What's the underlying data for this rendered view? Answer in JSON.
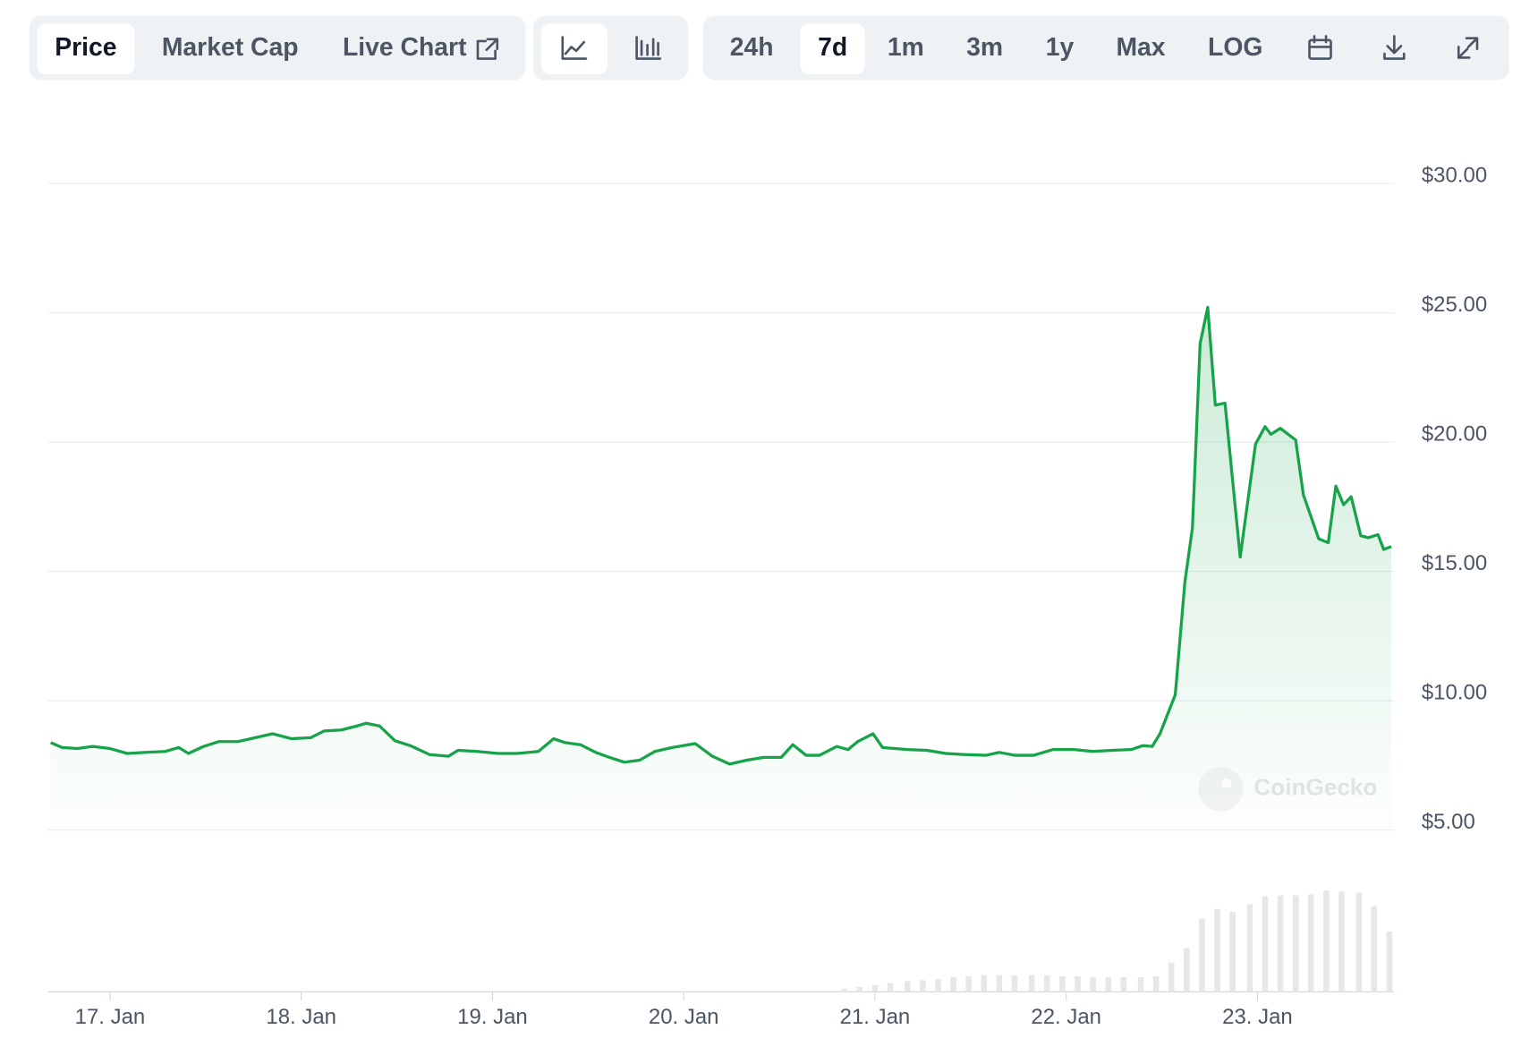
{
  "toolbar": {
    "tabs": [
      "Price",
      "Market Cap",
      "Live Chart"
    ],
    "ranges": [
      "24h",
      "7d",
      "1m",
      "3m",
      "1y",
      "Max",
      "LOG"
    ]
  },
  "watermark": "CoinGecko",
  "chart_data": [
    {
      "type": "line",
      "color": "#16a34a",
      "grid": true,
      "x": [
        16.69,
        16.75,
        16.83,
        16.91,
        17.0,
        17.09,
        17.19,
        17.29,
        17.36,
        17.41,
        17.49,
        17.57,
        17.67,
        17.76,
        17.85,
        17.95,
        18.05,
        18.12,
        18.21,
        18.29,
        18.34,
        18.41,
        18.49,
        18.57,
        18.67,
        18.77,
        18.82,
        18.92,
        19.03,
        19.13,
        19.24,
        19.32,
        19.38,
        19.46,
        19.54,
        19.61,
        19.69,
        19.77,
        19.85,
        19.94,
        20.06,
        20.15,
        20.24,
        20.33,
        20.42,
        20.51,
        20.57,
        20.64,
        20.71,
        20.8,
        20.86,
        20.91,
        20.99,
        21.04,
        21.17,
        21.27,
        21.37,
        21.47,
        21.58,
        21.65,
        21.73,
        21.83,
        21.93,
        22.04,
        22.14,
        22.24,
        22.34,
        22.4,
        22.45,
        22.49,
        22.57,
        22.62,
        22.66,
        22.7,
        22.74,
        22.78,
        22.83,
        22.91,
        22.99,
        23.04,
        23.07,
        23.12,
        23.2,
        23.24,
        23.32,
        23.37,
        23.41,
        23.45,
        23.49,
        23.54,
        23.58,
        23.63,
        23.66,
        23.7
      ],
      "values": [
        8.38,
        8.19,
        8.15,
        8.23,
        8.15,
        7.96,
        8.0,
        8.04,
        8.19,
        7.96,
        8.23,
        8.42,
        8.42,
        8.57,
        8.72,
        8.53,
        8.57,
        8.83,
        8.87,
        9.02,
        9.13,
        9.02,
        8.45,
        8.26,
        7.92,
        7.85,
        8.08,
        8.04,
        7.96,
        7.96,
        8.04,
        8.53,
        8.38,
        8.3,
        8.0,
        7.81,
        7.62,
        7.7,
        8.04,
        8.19,
        8.34,
        7.85,
        7.55,
        7.7,
        7.81,
        7.81,
        8.3,
        7.89,
        7.89,
        8.23,
        8.11,
        8.42,
        8.72,
        8.19,
        8.11,
        8.08,
        7.96,
        7.92,
        7.89,
        8.0,
        7.89,
        7.89,
        8.11,
        8.11,
        8.04,
        8.08,
        8.11,
        8.26,
        8.23,
        8.72,
        10.23,
        14.57,
        16.68,
        23.81,
        25.21,
        21.43,
        21.51,
        15.55,
        19.92,
        20.6,
        20.3,
        20.53,
        20.08,
        17.96,
        16.26,
        16.11,
        18.3,
        17.58,
        17.89,
        16.38,
        16.3,
        16.42,
        15.85,
        15.96
      ],
      "xlim": [
        16.69,
        23.7
      ],
      "xticks": [
        {
          "value": 17,
          "label": "17. Jan"
        },
        {
          "value": 18,
          "label": "18. Jan"
        },
        {
          "value": 19,
          "label": "19. Jan"
        },
        {
          "value": 20,
          "label": "20. Jan"
        },
        {
          "value": 21,
          "label": "21. Jan"
        },
        {
          "value": 22,
          "label": "22. Jan"
        },
        {
          "value": 23,
          "label": "23. Jan"
        }
      ],
      "ylim": [
        5,
        30
      ],
      "yticks": [
        {
          "value": 5,
          "label": "$5.00"
        },
        {
          "value": 10,
          "label": "$10.00"
        },
        {
          "value": 15,
          "label": "$15.00"
        },
        {
          "value": 20,
          "label": "$20.00"
        },
        {
          "value": 25,
          "label": "$25.00"
        },
        {
          "value": 30,
          "label": "$30.00"
        }
      ]
    },
    {
      "type": "bar",
      "color": "#e5e7eb",
      "x": [
        20.84,
        20.92,
        21.0,
        21.08,
        21.17,
        21.25,
        21.33,
        21.41,
        21.49,
        21.57,
        21.65,
        21.73,
        21.82,
        21.9,
        21.98,
        22.06,
        22.14,
        22.22,
        22.3,
        22.39,
        22.47,
        22.55,
        22.63,
        22.71,
        22.79,
        22.87,
        22.96,
        23.04,
        23.12,
        23.2,
        23.28,
        23.36,
        23.44,
        23.53,
        23.61,
        23.69
      ],
      "values": [
        3,
        5,
        7,
        9,
        11,
        12,
        13,
        15,
        16,
        17,
        17,
        17,
        17,
        17,
        16,
        16,
        15,
        15,
        15,
        15,
        16,
        30,
        45,
        75,
        85,
        82,
        90,
        98,
        99,
        99,
        100,
        104,
        103,
        102,
        88,
        62
      ],
      "xlim": [
        16.69,
        23.7
      ],
      "ylim": [
        0,
        110
      ]
    }
  ]
}
